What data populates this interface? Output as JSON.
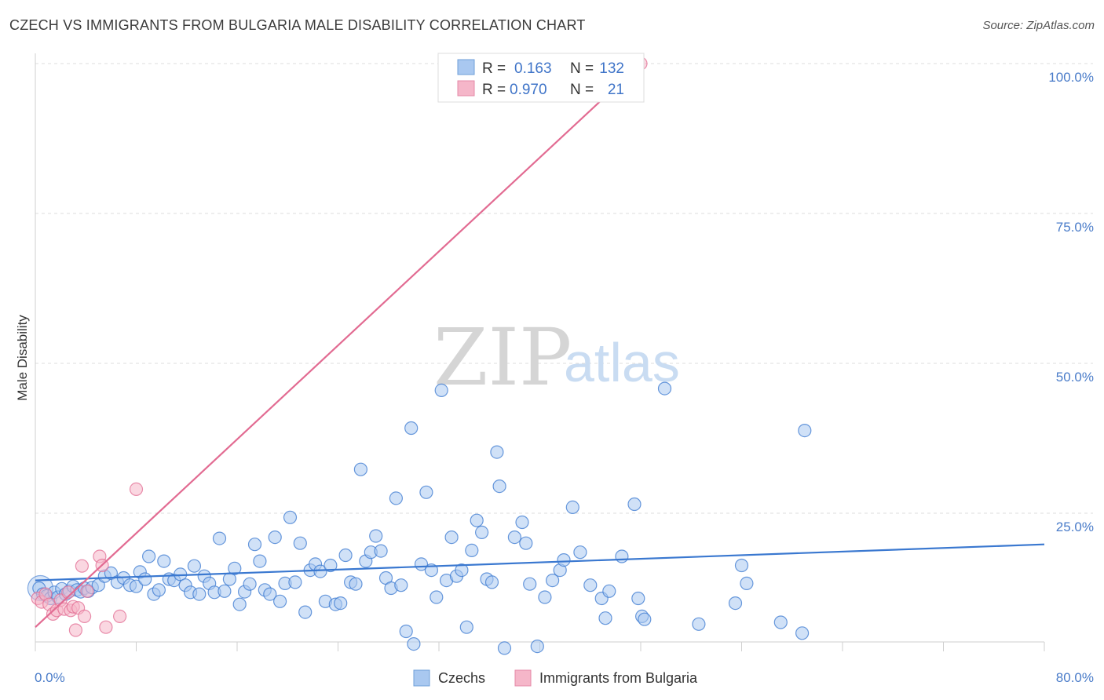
{
  "title": "CZECH VS IMMIGRANTS FROM BULGARIA MALE DISABILITY CORRELATION CHART",
  "source": "Source: ZipAtlas.com",
  "watermark": {
    "zip": "ZIP",
    "atlas": "atlas"
  },
  "colors": {
    "blue": "#3a78d0",
    "blue_fill": "#a9c8f0",
    "pink": "#e26b92",
    "pink_fill": "#f5b6c9",
    "tick": "#4a7cc9"
  },
  "legend": {
    "row1": {
      "r_label": "R =",
      "r_value": "0.163",
      "n_label": "N =",
      "n_value": "132"
    },
    "row2": {
      "r_label": "R =",
      "r_value": "0.970",
      "n_label": "N =",
      "n_value": "21"
    }
  },
  "chart_data": {
    "type": "scatter",
    "title": "CZECH VS IMMIGRANTS FROM BULGARIA MALE DISABILITY CORRELATION CHART",
    "xlabel": "",
    "ylabel": "Male Disability",
    "xlim": [
      0,
      80
    ],
    "ylim": [
      0,
      100
    ],
    "x_tick_labels": [
      "0.0%",
      "80.0%"
    ],
    "y_tick_labels": [
      "100.0%",
      "75.0%",
      "50.0%",
      "25.0%"
    ],
    "y_ticks": [
      100,
      75,
      50,
      25
    ],
    "series": [
      {
        "name": "Czechs",
        "color": "#3a78d0",
        "trend": {
          "x": [
            0,
            80
          ],
          "y": [
            13.8,
            19.8
          ]
        },
        "points": [
          [
            0.3,
            12.5
          ],
          [
            0.6,
            11.5
          ],
          [
            0.9,
            11.2
          ],
          [
            1.2,
            10.8
          ],
          [
            1.5,
            11.8
          ],
          [
            1.8,
            11.0
          ],
          [
            2.1,
            12.4
          ],
          [
            2.4,
            11.5
          ],
          [
            2.7,
            12.0
          ],
          [
            3.0,
            12.8
          ],
          [
            3.3,
            12.2
          ],
          [
            3.6,
            11.9
          ],
          [
            3.9,
            12.5
          ],
          [
            4.2,
            12.0
          ],
          [
            4.5,
            12.6
          ],
          [
            5.0,
            13.0
          ],
          [
            5.5,
            14.5
          ],
          [
            6.0,
            15.0
          ],
          [
            6.5,
            13.5
          ],
          [
            7.0,
            14.2
          ],
          [
            7.5,
            13.0
          ],
          [
            8.0,
            12.8
          ],
          [
            8.3,
            15.2
          ],
          [
            8.7,
            14.0
          ],
          [
            9.0,
            17.8
          ],
          [
            9.4,
            11.5
          ],
          [
            9.8,
            12.2
          ],
          [
            10.2,
            17.0
          ],
          [
            10.6,
            14.0
          ],
          [
            11.0,
            13.8
          ],
          [
            11.5,
            14.8
          ],
          [
            11.9,
            13.0
          ],
          [
            12.3,
            11.8
          ],
          [
            12.6,
            16.2
          ],
          [
            13.0,
            11.5
          ],
          [
            13.4,
            14.5
          ],
          [
            13.8,
            13.3
          ],
          [
            14.2,
            11.8
          ],
          [
            14.6,
            20.8
          ],
          [
            15.0,
            12.0
          ],
          [
            15.4,
            14.0
          ],
          [
            15.8,
            15.8
          ],
          [
            16.2,
            9.8
          ],
          [
            16.6,
            11.9
          ],
          [
            17.0,
            13.2
          ],
          [
            17.4,
            19.8
          ],
          [
            17.8,
            17.0
          ],
          [
            18.2,
            12.2
          ],
          [
            18.6,
            11.5
          ],
          [
            19.0,
            21.0
          ],
          [
            19.4,
            10.3
          ],
          [
            19.8,
            13.3
          ],
          [
            20.2,
            24.3
          ],
          [
            20.6,
            13.5
          ],
          [
            21.0,
            20.0
          ],
          [
            21.4,
            8.5
          ],
          [
            21.8,
            15.5
          ],
          [
            22.2,
            16.5
          ],
          [
            22.6,
            15.3
          ],
          [
            23.0,
            10.3
          ],
          [
            23.4,
            16.3
          ],
          [
            23.8,
            9.8
          ],
          [
            24.2,
            10.0
          ],
          [
            24.6,
            18.0
          ],
          [
            25.0,
            13.5
          ],
          [
            25.4,
            13.2
          ],
          [
            25.8,
            32.3
          ],
          [
            26.2,
            17.0
          ],
          [
            26.6,
            18.5
          ],
          [
            27.0,
            21.2
          ],
          [
            27.4,
            18.7
          ],
          [
            27.8,
            14.2
          ],
          [
            28.2,
            12.5
          ],
          [
            28.6,
            27.5
          ],
          [
            29.0,
            13.0
          ],
          [
            29.4,
            5.3
          ],
          [
            29.8,
            39.2
          ],
          [
            30.0,
            3.2
          ],
          [
            30.6,
            16.5
          ],
          [
            31.0,
            28.5
          ],
          [
            31.4,
            15.5
          ],
          [
            31.8,
            11.0
          ],
          [
            32.2,
            45.5
          ],
          [
            32.6,
            13.8
          ],
          [
            33.0,
            21.0
          ],
          [
            33.4,
            14.5
          ],
          [
            33.8,
            15.5
          ],
          [
            34.2,
            6.0
          ],
          [
            34.6,
            18.8
          ],
          [
            35.0,
            23.8
          ],
          [
            35.4,
            21.8
          ],
          [
            35.8,
            14.0
          ],
          [
            36.2,
            13.5
          ],
          [
            36.6,
            35.2
          ],
          [
            36.8,
            29.5
          ],
          [
            37.2,
            2.5
          ],
          [
            38.0,
            21.0
          ],
          [
            38.6,
            23.5
          ],
          [
            38.9,
            20.0
          ],
          [
            39.2,
            13.2
          ],
          [
            39.8,
            2.8
          ],
          [
            40.4,
            11.0
          ],
          [
            41.0,
            13.8
          ],
          [
            41.6,
            15.5
          ],
          [
            41.9,
            17.2
          ],
          [
            42.6,
            26.0
          ],
          [
            43.2,
            18.5
          ],
          [
            44.0,
            13.0
          ],
          [
            44.9,
            10.8
          ],
          [
            45.2,
            7.5
          ],
          [
            45.5,
            12.0
          ],
          [
            46.5,
            17.8
          ],
          [
            47.5,
            26.5
          ],
          [
            47.8,
            10.8
          ],
          [
            48.1,
            7.8
          ],
          [
            48.3,
            7.3
          ],
          [
            49.9,
            45.8
          ],
          [
            52.6,
            6.5
          ],
          [
            55.5,
            10.0
          ],
          [
            56.0,
            16.3
          ],
          [
            56.4,
            13.3
          ],
          [
            59.1,
            6.8
          ],
          [
            60.8,
            5.0
          ],
          [
            61.0,
            38.8
          ]
        ]
      },
      {
        "name": "Immigrants from Bulgaria",
        "color": "#e26b92",
        "trend": {
          "x": [
            0,
            48
          ],
          "y": [
            6.0,
            100
          ]
        },
        "points": [
          [
            0.2,
            10.8
          ],
          [
            0.5,
            10.2
          ],
          [
            0.8,
            11.5
          ],
          [
            1.1,
            9.8
          ],
          [
            1.4,
            8.2
          ],
          [
            1.7,
            8.8
          ],
          [
            2.0,
            10.5
          ],
          [
            2.3,
            9.0
          ],
          [
            2.6,
            11.8
          ],
          [
            2.8,
            8.8
          ],
          [
            3.0,
            9.4
          ],
          [
            3.2,
            5.5
          ],
          [
            3.4,
            9.2
          ],
          [
            3.7,
            16.2
          ],
          [
            3.9,
            7.8
          ],
          [
            4.1,
            12.0
          ],
          [
            5.1,
            17.8
          ],
          [
            5.3,
            16.3
          ],
          [
            5.6,
            6.0
          ],
          [
            6.7,
            7.8
          ],
          [
            8.0,
            29.0
          ],
          [
            48.0,
            100.0
          ]
        ]
      }
    ]
  },
  "bottom_legend": {
    "czechs": "Czechs",
    "bulgaria": "Immigrants from Bulgaria"
  }
}
